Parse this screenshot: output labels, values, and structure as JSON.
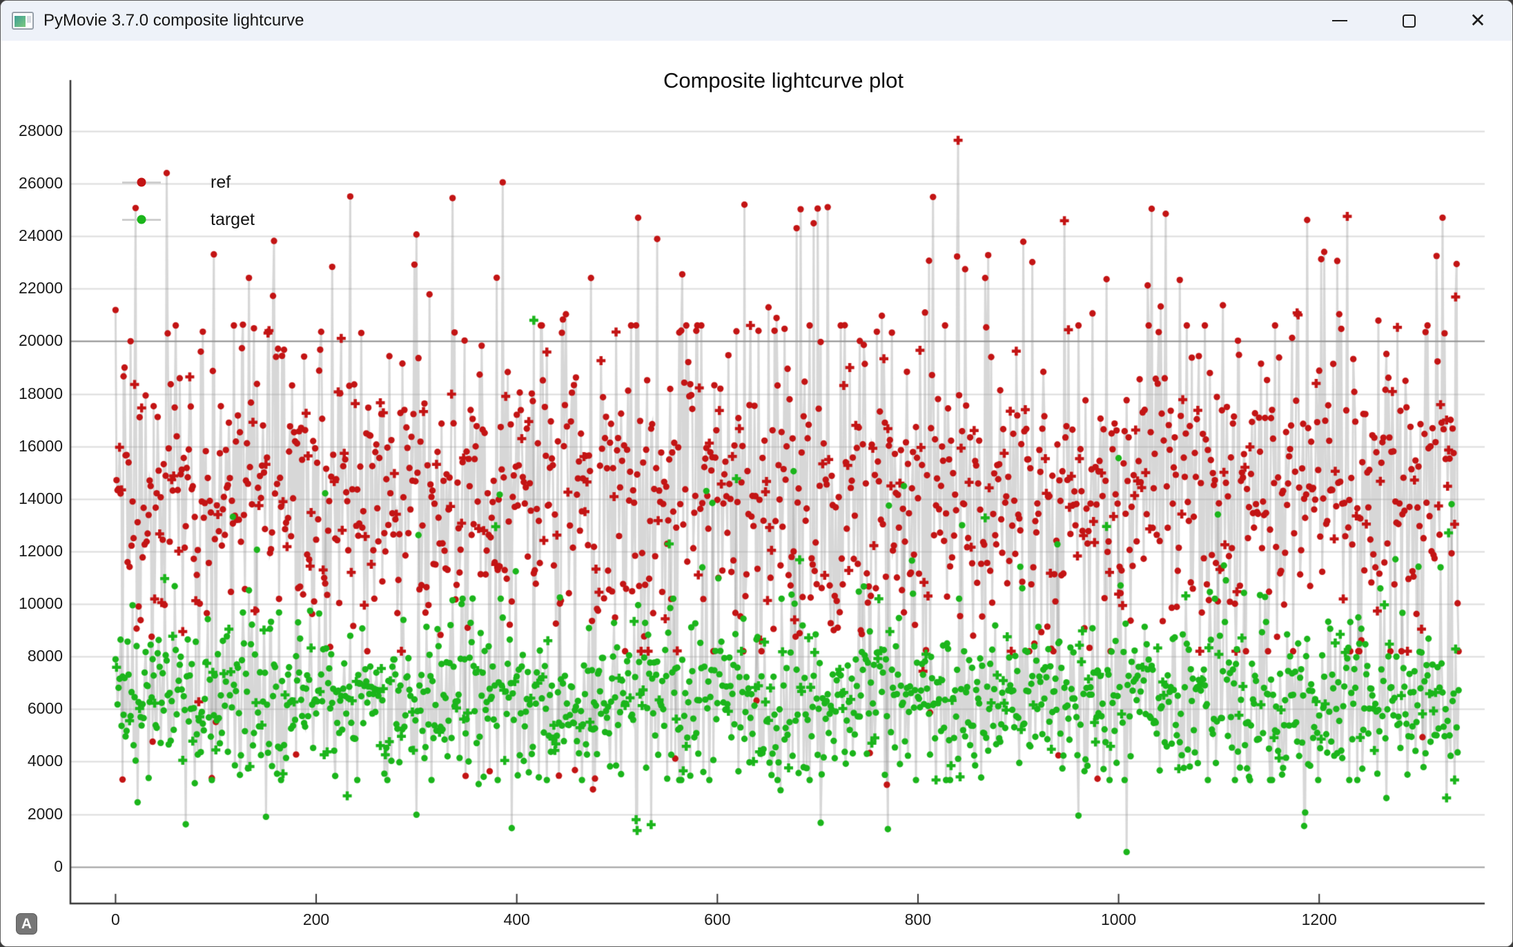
{
  "window": {
    "title": "PyMovie 3.7.0 composite lightcurve",
    "controls": {
      "minimize": "minimize",
      "maximize": "maximize",
      "close": "close"
    }
  },
  "autoscale_button_label": "A",
  "chart_data": {
    "type": "scatter",
    "title": "Composite lightcurve plot",
    "xlabel": "",
    "ylabel": "",
    "x_ticks": [
      0,
      200,
      400,
      600,
      800,
      1000,
      1200
    ],
    "y_ticks": [
      0,
      2000,
      4000,
      6000,
      8000,
      10000,
      12000,
      14000,
      16000,
      18000,
      20000,
      22000,
      24000,
      26000,
      28000
    ],
    "x_range": [
      -45,
      1365
    ],
    "y_range": [
      -1400,
      29100
    ],
    "grid": "horizontal-only",
    "grid_color": "#dcdcdc",
    "emphasis_lines": [
      {
        "y": 20000,
        "color": "#8a8a8a"
      },
      {
        "y": 0,
        "color": "#9c9c9c"
      }
    ],
    "axis_color": "#333333",
    "tick_mark_length": 14,
    "connector_color": "rgba(150,150,150,0.38)",
    "connector_width": 3,
    "legend": {
      "position": "top-left",
      "entries": [
        {
          "label": "ref",
          "color": "#c31414"
        },
        {
          "label": "target",
          "color": "#1bb51b"
        }
      ]
    },
    "seed": 20240731,
    "marker_radius": 4.7,
    "plus_marker_size": 6.5,
    "series": [
      {
        "name": "ref",
        "color": "#c31414",
        "marker": "circle-with-occasional-plus",
        "plus_fraction": 0.13,
        "n": 1340,
        "distribution": {
          "mean": 14200,
          "sd": 2900,
          "clamp": [
            8200,
            20600
          ],
          "low_frac": 0.012,
          "low_range": [
            2900,
            7500
          ],
          "high_frac": 0.068,
          "high_range": [
            20300,
            25600
          ],
          "high_bias_pow": 2.2
        },
        "outliers": {
          "7": 3320,
          "51": 26400,
          "336": 25450,
          "386": 26050,
          "521": 24700,
          "627": 25200,
          "700": 25050,
          "769": 3120,
          "840": 27650,
          "1047": 24850,
          "1205": 23400
        }
      },
      {
        "name": "target",
        "color": "#1bb51b",
        "marker": "circle-with-occasional-plus",
        "plus_fraction": 0.12,
        "n": 1340,
        "distribution": {
          "mean": 6300,
          "sd": 1500,
          "clamp": [
            3300,
            10200
          ],
          "low_frac": 0.008,
          "low_range": [
            1300,
            3200
          ],
          "high_frac": 0.05,
          "high_range": [
            10200,
            15800
          ],
          "high_bias_pow": 2.2
        },
        "outliers": {
          "150": 1900,
          "300": 1980,
          "395": 1470,
          "417": 20800,
          "520": 1380,
          "1008": 560,
          "1185": 1550
        }
      }
    ]
  }
}
